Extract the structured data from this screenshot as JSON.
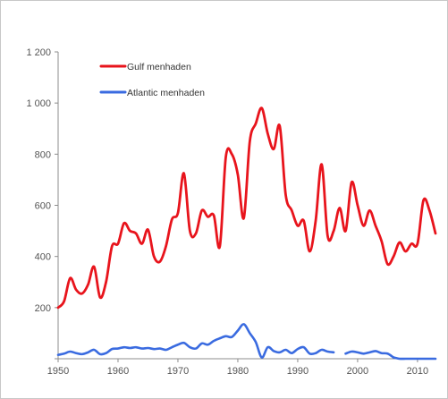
{
  "chart_data": {
    "type": "line",
    "title": "",
    "xlabel": "",
    "ylabel": "",
    "xlim": [
      1950,
      2013
    ],
    "ylim": [
      0,
      1200
    ],
    "x_ticks": [
      1950,
      1960,
      1970,
      1980,
      1990,
      2000,
      2010
    ],
    "x_tick_labels": [
      "1950",
      "1960",
      "1970",
      "1980",
      "1990",
      "2000",
      "2010"
    ],
    "y_ticks": [
      0,
      200,
      400,
      600,
      800,
      1000,
      1200
    ],
    "y_tick_labels": [
      "",
      "200",
      "400",
      "600",
      "800",
      "1 000",
      "1 200"
    ],
    "grid": false,
    "legend_position": "top-left",
    "series": [
      {
        "name": "Gulf menhaden",
        "color": "#e8141c",
        "points": [
          [
            1950,
            200
          ],
          [
            1951,
            225
          ],
          [
            1952,
            315
          ],
          [
            1953,
            270
          ],
          [
            1954,
            255
          ],
          [
            1955,
            290
          ],
          [
            1956,
            360
          ],
          [
            1957,
            240
          ],
          [
            1958,
            300
          ],
          [
            1959,
            440
          ],
          [
            1960,
            450
          ],
          [
            1961,
            530
          ],
          [
            1962,
            500
          ],
          [
            1963,
            490
          ],
          [
            1964,
            450
          ],
          [
            1965,
            505
          ],
          [
            1966,
            400
          ],
          [
            1967,
            380
          ],
          [
            1968,
            440
          ],
          [
            1969,
            545
          ],
          [
            1970,
            570
          ],
          [
            1971,
            725
          ],
          [
            1972,
            500
          ],
          [
            1973,
            490
          ],
          [
            1974,
            580
          ],
          [
            1975,
            555
          ],
          [
            1976,
            560
          ],
          [
            1977,
            440
          ],
          [
            1978,
            790
          ],
          [
            1979,
            800
          ],
          [
            1980,
            720
          ],
          [
            1981,
            550
          ],
          [
            1982,
            850
          ],
          [
            1983,
            920
          ],
          [
            1984,
            980
          ],
          [
            1985,
            880
          ],
          [
            1986,
            820
          ],
          [
            1987,
            910
          ],
          [
            1988,
            640
          ],
          [
            1989,
            580
          ],
          [
            1990,
            520
          ],
          [
            1991,
            540
          ],
          [
            1992,
            420
          ],
          [
            1993,
            540
          ],
          [
            1994,
            760
          ],
          [
            1995,
            480
          ],
          [
            1996,
            500
          ],
          [
            1997,
            590
          ],
          [
            1998,
            500
          ],
          [
            1999,
            690
          ],
          [
            2000,
            600
          ],
          [
            2001,
            520
          ],
          [
            2002,
            580
          ],
          [
            2003,
            520
          ],
          [
            2004,
            460
          ],
          [
            2005,
            370
          ],
          [
            2006,
            400
          ],
          [
            2007,
            455
          ],
          [
            2008,
            420
          ],
          [
            2009,
            450
          ],
          [
            2010,
            450
          ],
          [
            2011,
            620
          ],
          [
            2012,
            580
          ],
          [
            2013,
            490
          ]
        ]
      },
      {
        "name": "Atlantic menhaden",
        "color": "#3a6be0",
        "segments": [
          [
            [
              1950,
              15
            ],
            [
              1951,
              20
            ],
            [
              1952,
              28
            ],
            [
              1953,
              22
            ],
            [
              1954,
              18
            ],
            [
              1955,
              25
            ],
            [
              1956,
              35
            ],
            [
              1957,
              18
            ],
            [
              1958,
              22
            ],
            [
              1959,
              38
            ],
            [
              1960,
              40
            ],
            [
              1961,
              45
            ],
            [
              1962,
              42
            ],
            [
              1963,
              45
            ],
            [
              1964,
              40
            ],
            [
              1965,
              42
            ],
            [
              1966,
              38
            ],
            [
              1967,
              40
            ],
            [
              1968,
              35
            ],
            [
              1969,
              45
            ],
            [
              1970,
              55
            ],
            [
              1971,
              62
            ],
            [
              1972,
              45
            ],
            [
              1973,
              40
            ],
            [
              1974,
              60
            ],
            [
              1975,
              55
            ],
            [
              1976,
              70
            ],
            [
              1977,
              80
            ],
            [
              1978,
              88
            ],
            [
              1979,
              85
            ],
            [
              1980,
              110
            ],
            [
              1981,
              135
            ],
            [
              1982,
              100
            ],
            [
              1983,
              65
            ],
            [
              1984,
              5
            ],
            [
              1985,
              45
            ],
            [
              1986,
              30
            ],
            [
              1987,
              25
            ],
            [
              1988,
              35
            ],
            [
              1989,
              22
            ],
            [
              1990,
              38
            ],
            [
              1991,
              45
            ],
            [
              1992,
              20
            ],
            [
              1993,
              22
            ],
            [
              1994,
              35
            ],
            [
              1995,
              28
            ],
            [
              1996,
              25
            ]
          ],
          [
            [
              1998,
              20
            ],
            [
              1999,
              28
            ],
            [
              2000,
              25
            ],
            [
              2001,
              20
            ],
            [
              2002,
              25
            ],
            [
              2003,
              30
            ],
            [
              2004,
              22
            ],
            [
              2005,
              20
            ],
            [
              2006,
              5
            ]
          ],
          [
            [
              2006,
              5
            ],
            [
              2007,
              0
            ],
            [
              2008,
              0
            ],
            [
              2009,
              0
            ],
            [
              2010,
              0
            ],
            [
              2011,
              0
            ],
            [
              2012,
              0
            ],
            [
              2013,
              0
            ]
          ]
        ]
      }
    ]
  }
}
